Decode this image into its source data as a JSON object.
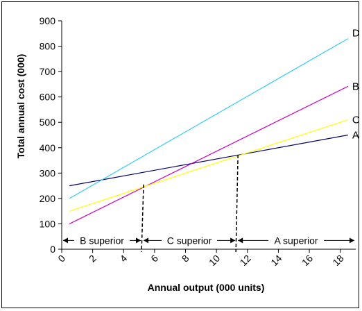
{
  "chart_data": {
    "type": "line",
    "xlabel": "Annual output (000 units)",
    "ylabel": "Total annual cost (000)",
    "xlim": [
      0,
      19
    ],
    "ylim": [
      0,
      900
    ],
    "x_ticks": [
      0,
      2,
      4,
      6,
      8,
      10,
      12,
      14,
      16,
      18
    ],
    "y_ticks": [
      0,
      100,
      200,
      300,
      400,
      500,
      600,
      700,
      800,
      900
    ],
    "grid": false,
    "series": [
      {
        "name": "A",
        "color": "#000066",
        "x": [
          0.5,
          18.5
        ],
        "y": [
          250,
          450
        ]
      },
      {
        "name": "B",
        "color": "#cc00cc",
        "x": [
          0.5,
          18.5
        ],
        "y": [
          100,
          642
        ]
      },
      {
        "name": "C",
        "color": "#ffff00",
        "x": [
          0.5,
          18.5
        ],
        "y": [
          150,
          510
        ]
      },
      {
        "name": "D",
        "color": "#33ccff",
        "x": [
          0.5,
          18.5
        ],
        "y": [
          200,
          830
        ]
      }
    ],
    "breakeven_lines": [
      {
        "x": 5.2,
        "y": 255
      },
      {
        "x": 11.3,
        "y": 372
      }
    ],
    "regions": [
      {
        "label": "B superior",
        "from": 0,
        "to": 5.2,
        "y": 40
      },
      {
        "label": "C superior",
        "from": 5.2,
        "to": 11.3,
        "y": 40
      },
      {
        "label": "A superior",
        "from": 11.3,
        "to": 19,
        "y": 40
      }
    ]
  }
}
